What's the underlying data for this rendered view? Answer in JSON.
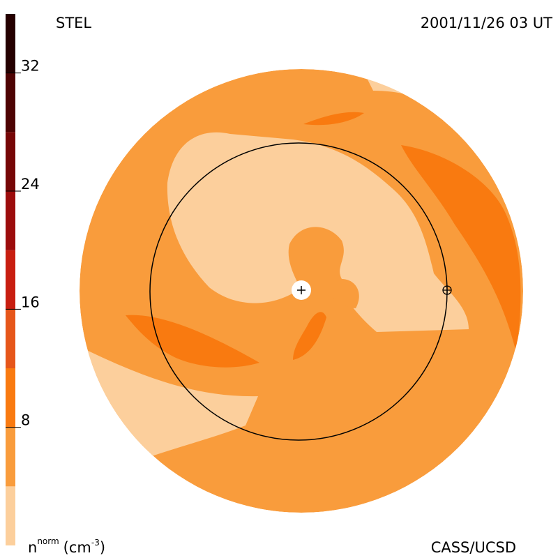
{
  "chart_data": {
    "type": "contour",
    "title": "STEL",
    "subtitle": "2001/11/26 03 UT",
    "credit": "CASS/UCSD",
    "colorbar_label": {
      "base": "n",
      "sup": "norm",
      "unit": "(cm",
      "unit_sup": "-3",
      "unit_end": ")"
    },
    "colorbar": {
      "bounds": [
        0,
        4,
        8,
        12,
        16,
        20,
        24,
        28,
        32,
        36
      ],
      "colors": [
        "#fccf9c",
        "#f99c3c",
        "#f97a10",
        "#e6561a",
        "#c81e10",
        "#9c0c0c",
        "#760606",
        "#4e0303",
        "#250000"
      ]
    },
    "ylim": [
      0,
      36
    ],
    "yticks": [
      8,
      16,
      24,
      32
    ]
  }
}
